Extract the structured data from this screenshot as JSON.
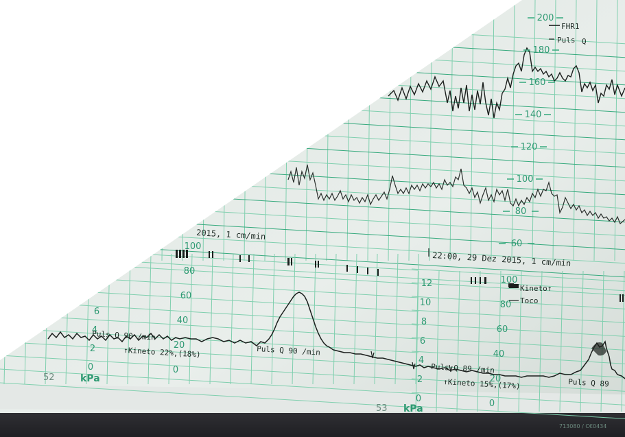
{
  "colors": {
    "paper": "#e6ece8",
    "grid_major": "#34a97c",
    "grid_minor": "#7fcfae",
    "trace": "#1b1f1d",
    "scale_text": "#2f9a73",
    "background_top": "#ffffff",
    "background_bottom": "#2e2e33"
  },
  "upper_strip": {
    "legend_fhr": "FHR1",
    "legend_puls": "Puls",
    "legend_puls_symbol": "Q",
    "scale_labels": [
      "200",
      "180",
      "160",
      "140",
      "120",
      "100",
      "80",
      "60"
    ]
  },
  "annotations": {
    "timestamp_left": "2015, 1 cm/min",
    "timestamp_right": "22:00, 29 Dez 2015, 1 cm/min"
  },
  "lower_strip": {
    "left": {
      "toco_scale_labels": [
        "100",
        "80",
        "60",
        "40",
        "20",
        "0"
      ],
      "kpa_scale_labels": [
        "6",
        "4",
        "2",
        "0"
      ],
      "kpa_unit": "kPa",
      "page_number": "52",
      "puls_text_1": "Puls Q 90 /min",
      "puls_text_2": "Puls Q 90 /min",
      "kineto_text": "↑Kineto 22%,(18%)"
    },
    "right": {
      "kpa_scale_labels": [
        "12",
        "10",
        "8",
        "6",
        "4",
        "2",
        "0"
      ],
      "kpa_unit": "kPa",
      "toco_scale_labels": [
        "100",
        "80",
        "60",
        "40",
        "20",
        "0"
      ],
      "page_number": "53",
      "legend_kineto": "Kineto↑",
      "legend_toco": "Toco",
      "puls_text_1": "Puls Q 89 /min",
      "puls_text_2": "Puls Q 89",
      "kineto_text": "↑Kineto 15%,(17%)",
      "serial_text": "713080 / C€0434"
    }
  }
}
